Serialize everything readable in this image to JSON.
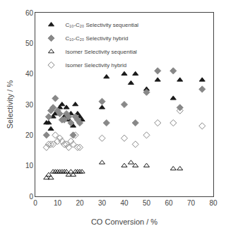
{
  "chart_data": {
    "type": "scatter",
    "xlabel": "CO Conversion / %",
    "ylabel": "Selectivity / %",
    "xlim": [
      0,
      80
    ],
    "ylim": [
      0,
      60
    ],
    "xticks": [
      0,
      10,
      20,
      30,
      40,
      50,
      60,
      70,
      80
    ],
    "yticks": [
      0,
      10,
      20,
      30,
      40,
      50,
      60
    ],
    "grid": false,
    "legend": "upper left",
    "series": [
      {
        "name": "C₁₀-C₂₀ Selectivity sequential",
        "color": "#1a1a1a",
        "marker": "triangle-up",
        "x": [
          5,
          6,
          7,
          8,
          9,
          10,
          11,
          12,
          13,
          14,
          15,
          16,
          17,
          18,
          19,
          20,
          21,
          30,
          32,
          40,
          43,
          45,
          50,
          55,
          62,
          65,
          75
        ],
        "values": [
          24,
          24,
          22,
          26,
          27,
          27,
          29,
          30,
          26,
          29,
          25,
          27,
          23,
          30,
          27,
          26,
          25,
          29,
          39,
          40,
          37,
          40,
          35,
          38,
          32,
          38,
          38
        ]
      },
      {
        "name": "C₁₀-C₂₀ Selectivity hybrid",
        "color": "#888888",
        "marker": "diamond",
        "x": [
          5,
          6,
          7,
          8,
          9,
          10,
          11,
          12,
          13,
          14,
          15,
          16,
          17,
          18,
          19,
          20,
          30,
          32,
          40,
          45,
          50,
          55,
          62,
          65,
          75
        ],
        "values": [
          20,
          26,
          28,
          29,
          32,
          28,
          27,
          25,
          25,
          27,
          26,
          24,
          20,
          26,
          25,
          24,
          31,
          24,
          30,
          24,
          34,
          41,
          41,
          29,
          35
        ]
      },
      {
        "name": "Isomer Selectivity sequential",
        "color": "#1a1a1a",
        "marker": "triangle-up-open",
        "x": [
          5,
          6,
          7,
          8,
          9,
          10,
          11,
          12,
          13,
          14,
          15,
          16,
          17,
          18,
          19,
          20,
          21,
          30,
          40,
          43,
          45,
          50,
          62,
          65
        ],
        "values": [
          6,
          7,
          6,
          8,
          8,
          8,
          8,
          8,
          8,
          8,
          7,
          8,
          7,
          8,
          8,
          8,
          8,
          11,
          10,
          11,
          10,
          10,
          9,
          9
        ]
      },
      {
        "name": "Isomer Selectivity hybrid",
        "color": "#888888",
        "marker": "diamond-open",
        "x": [
          5,
          6,
          7,
          8,
          9,
          10,
          11,
          12,
          13,
          14,
          15,
          16,
          17,
          18,
          19,
          20,
          30,
          40,
          45,
          50,
          55,
          62,
          65,
          75
        ],
        "values": [
          16,
          17,
          17,
          17,
          20,
          18,
          19,
          18,
          17,
          17,
          16,
          18,
          17,
          20,
          16,
          16,
          19,
          19,
          17,
          20,
          24,
          24,
          28,
          23
        ]
      }
    ]
  }
}
